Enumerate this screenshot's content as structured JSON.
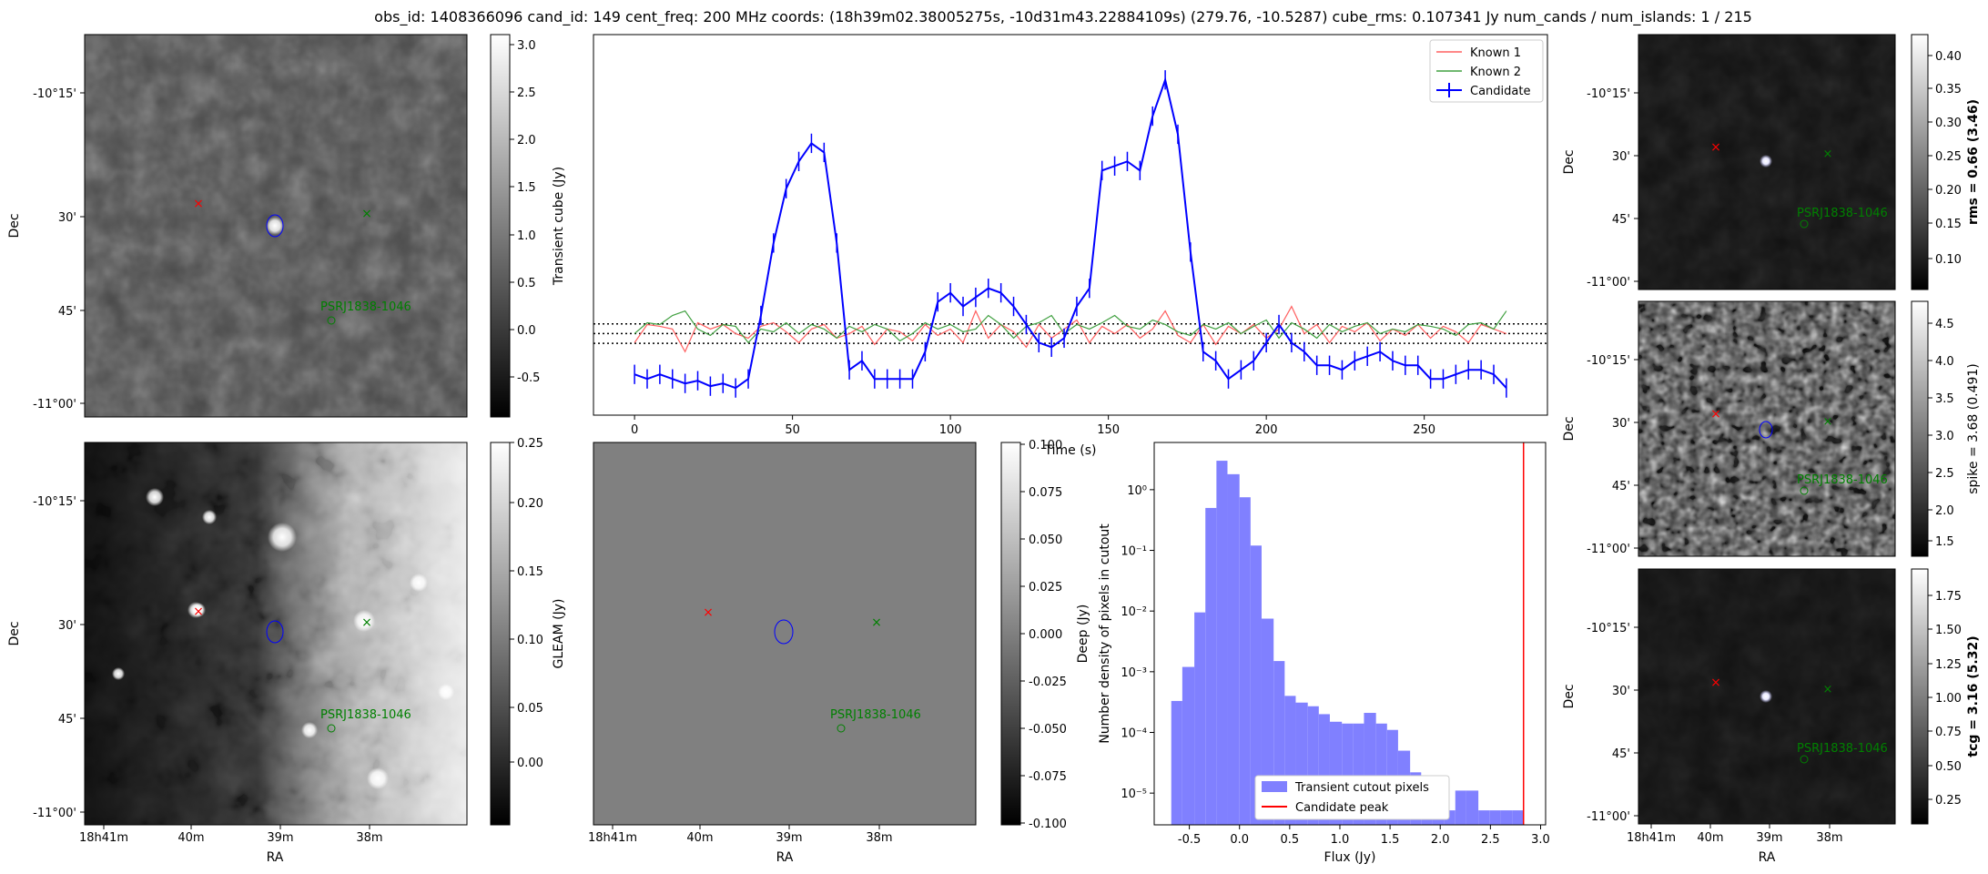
{
  "header": {
    "title": "obs_id: 1408366096 cand_id: 149 cent_freq: 200 MHz coords: (18h39m02.38005275s, -10d31m43.22884109s) (279.76, -10.5287) cube_rms: 0.107341 Jy num_cands / num_islands: 1 / 215"
  },
  "colors": {
    "candidate": "#0000ff",
    "known1": "#ff6060",
    "known2": "#40a040",
    "red_marker": "#ff0000",
    "green_marker": "#008000",
    "hist_fill": "#8080ff"
  },
  "sky_axes": {
    "dec_ticks": [
      "-10°15'",
      "30'",
      "45'",
      "-11°00'"
    ],
    "ra_ticks": [
      "18h41m",
      "40m",
      "39m",
      "38m"
    ],
    "dec_label": "Dec",
    "ra_label": "RA",
    "source_label": "PSRJ1838-1046"
  },
  "colorbars": {
    "transient": {
      "label": "Transient cube (Jy)",
      "ticks": [
        "3.0",
        "2.5",
        "2.0",
        "1.5",
        "1.0",
        "0.5",
        "0.0",
        "-0.5"
      ]
    },
    "gleam": {
      "label": "GLEAM (Jy)",
      "ticks": [
        "0.25",
        "0.20",
        "0.15",
        "0.10",
        "0.05",
        "0.00"
      ]
    },
    "deep": {
      "label": "Deep (Jy)",
      "ticks": [
        "0.100",
        "0.075",
        "0.050",
        "0.025",
        "0.000",
        "-0.025",
        "-0.050",
        "-0.075",
        "-0.100"
      ]
    },
    "rms": {
      "label": "rms = 0.66 (3.46)",
      "ticks": [
        "0.40",
        "0.35",
        "0.30",
        "0.25",
        "0.20",
        "0.15",
        "0.10"
      ]
    },
    "spike": {
      "label": "spike = 3.68 (0.491)",
      "ticks": [
        "4.5",
        "4.0",
        "3.5",
        "3.0",
        "2.5",
        "2.0",
        "1.5"
      ]
    },
    "tcg": {
      "label": "tcg = 3.16 (5.32)",
      "ticks": [
        "1.75",
        "1.50",
        "1.25",
        "1.00",
        "0.75",
        "0.50",
        "0.25"
      ]
    }
  },
  "chart_data": [
    {
      "type": "line",
      "title": "",
      "xlabel": "Time (s)",
      "ylabel": "",
      "xlim": [
        -13,
        289
      ],
      "ylim": [
        -0.9,
        3.3
      ],
      "x_ticks": [
        "0",
        "50",
        "100",
        "150",
        "200",
        "250"
      ],
      "legend": [
        "Known 1",
        "Known 2",
        "Candidate"
      ],
      "legend_position": "top-right",
      "dotted_levels": [
        0.107,
        0.0,
        -0.107
      ],
      "x": [
        0,
        4,
        8,
        12,
        16,
        20,
        24,
        28,
        32,
        36,
        40,
        44,
        48,
        52,
        56,
        60,
        64,
        68,
        72,
        76,
        80,
        84,
        88,
        92,
        96,
        100,
        104,
        108,
        112,
        116,
        120,
        124,
        128,
        132,
        136,
        140,
        144,
        148,
        152,
        156,
        160,
        164,
        168,
        172,
        176,
        180,
        184,
        188,
        192,
        196,
        200,
        204,
        208,
        212,
        216,
        220,
        224,
        228,
        232,
        236,
        240,
        244,
        248,
        252,
        256,
        260,
        264,
        268,
        272,
        276
      ],
      "series": [
        {
          "name": "Known 1",
          "values": [
            -0.1,
            0.1,
            0.08,
            0.05,
            -0.2,
            0.12,
            0.05,
            0.1,
            0.0,
            -0.05,
            0.08,
            0.12,
            0.02,
            -0.1,
            0.05,
            0.1,
            -0.05,
            0.0,
            0.08,
            -0.12,
            0.05,
            0.02,
            -0.08,
            0.1,
            -0.02,
            0.05,
            -0.1,
            0.25,
            -0.05,
            0.1,
            0.02,
            -0.15,
            0.1,
            -0.05,
            0.05,
            0.15,
            -0.1,
            0.08,
            0.0,
            0.1,
            -0.05,
            0.05,
            0.25,
            -0.02,
            -0.1,
            0.1,
            -0.12,
            0.08,
            0.0,
            0.1,
            -0.05,
            0.05,
            0.3,
            0.0,
            0.1,
            -0.1,
            0.08,
            0.02,
            0.12,
            -0.08,
            0.05,
            -0.02,
            0.1,
            -0.05,
            0.08,
            0.02,
            -0.1,
            0.1,
            0.05,
            0.0
          ]
        },
        {
          "name": "Known 2",
          "values": [
            0.0,
            0.12,
            0.1,
            0.2,
            0.25,
            0.05,
            -0.02,
            0.1,
            0.08,
            -0.1,
            0.05,
            0.02,
            0.12,
            0.0,
            0.1,
            0.05,
            -0.05,
            0.08,
            0.02,
            0.1,
            0.05,
            -0.08,
            0.0,
            0.12,
            0.05,
            0.1,
            0.02,
            0.05,
            0.2,
            0.1,
            -0.05,
            0.08,
            0.12,
            0.2,
            0.0,
            0.1,
            0.05,
            0.12,
            0.2,
            0.08,
            0.05,
            0.15,
            0.1,
            0.02,
            -0.02,
            0.1,
            0.05,
            0.12,
            0.0,
            0.08,
            0.15,
            -0.05,
            0.12,
            0.05,
            -0.05,
            0.1,
            0.02,
            0.08,
            0.12,
            0.0,
            0.05,
            0.02,
            0.1,
            0.08,
            0.05,
            -0.02,
            0.1,
            0.12,
            0.05,
            0.25
          ]
        },
        {
          "name": "Candidate",
          "values": [
            -0.45,
            -0.5,
            -0.45,
            -0.5,
            -0.55,
            -0.52,
            -0.58,
            -0.55,
            -0.6,
            -0.5,
            0.2,
            1.0,
            1.6,
            1.9,
            2.1,
            2.0,
            1.0,
            -0.4,
            -0.3,
            -0.5,
            -0.5,
            -0.5,
            -0.5,
            -0.2,
            0.35,
            0.45,
            0.3,
            0.4,
            0.5,
            0.45,
            0.3,
            0.1,
            -0.1,
            -0.15,
            -0.05,
            0.3,
            0.5,
            1.8,
            1.85,
            1.9,
            1.8,
            2.4,
            2.8,
            2.2,
            0.9,
            -0.2,
            -0.3,
            -0.5,
            -0.4,
            -0.3,
            -0.1,
            0.1,
            -0.1,
            -0.2,
            -0.35,
            -0.35,
            -0.4,
            -0.3,
            -0.25,
            -0.2,
            -0.3,
            -0.35,
            -0.35,
            -0.5,
            -0.5,
            -0.45,
            -0.4,
            -0.4,
            -0.45,
            -0.6
          ]
        }
      ]
    },
    {
      "type": "bar",
      "title": "",
      "xlabel": "Flux (Jy)",
      "ylabel": "Number density of pixels in cutout",
      "yscale": "log",
      "xlim": [
        -0.85,
        3.05
      ],
      "ylim": [
        3e-06,
        6
      ],
      "x_ticks": [
        "-0.5",
        "0.0",
        "0.5",
        "1.0",
        "1.5",
        "2.0",
        "2.5",
        "3.0"
      ],
      "y_ticks": [
        "10⁰",
        "10⁻¹",
        "10⁻²",
        "10⁻³",
        "10⁻⁴",
        "10⁻⁵"
      ],
      "bin_edges": [
        -0.68,
        -0.57,
        -0.45,
        -0.34,
        -0.23,
        -0.12,
        0.0,
        0.11,
        0.22,
        0.34,
        0.45,
        0.56,
        0.68,
        0.79,
        0.9,
        1.02,
        1.13,
        1.24,
        1.36,
        1.47,
        1.58,
        1.7,
        1.81,
        1.92,
        2.04,
        2.15,
        2.26,
        2.38,
        2.49,
        2.6,
        2.72,
        2.83
      ],
      "values": [
        0.00033,
        0.0012,
        0.0095,
        0.5,
        3.0,
        1.8,
        0.75,
        0.12,
        0.0075,
        0.0015,
        0.0004,
        0.00031,
        0.00027,
        0.0002,
        0.00015,
        0.00014,
        0.00014,
        0.00021,
        0.00014,
        0.00011,
        5e-05,
        2.2e-05,
        1.1e-05,
        1.1e-05,
        5.2e-06,
        1.1e-05,
        1.1e-05,
        5.2e-06,
        5.2e-06,
        5.2e-06,
        5.2e-06
      ],
      "candidate_peak": 2.83,
      "legend": [
        "Transient cutout pixels",
        "Candidate peak"
      ],
      "legend_position": "lower-right"
    }
  ]
}
